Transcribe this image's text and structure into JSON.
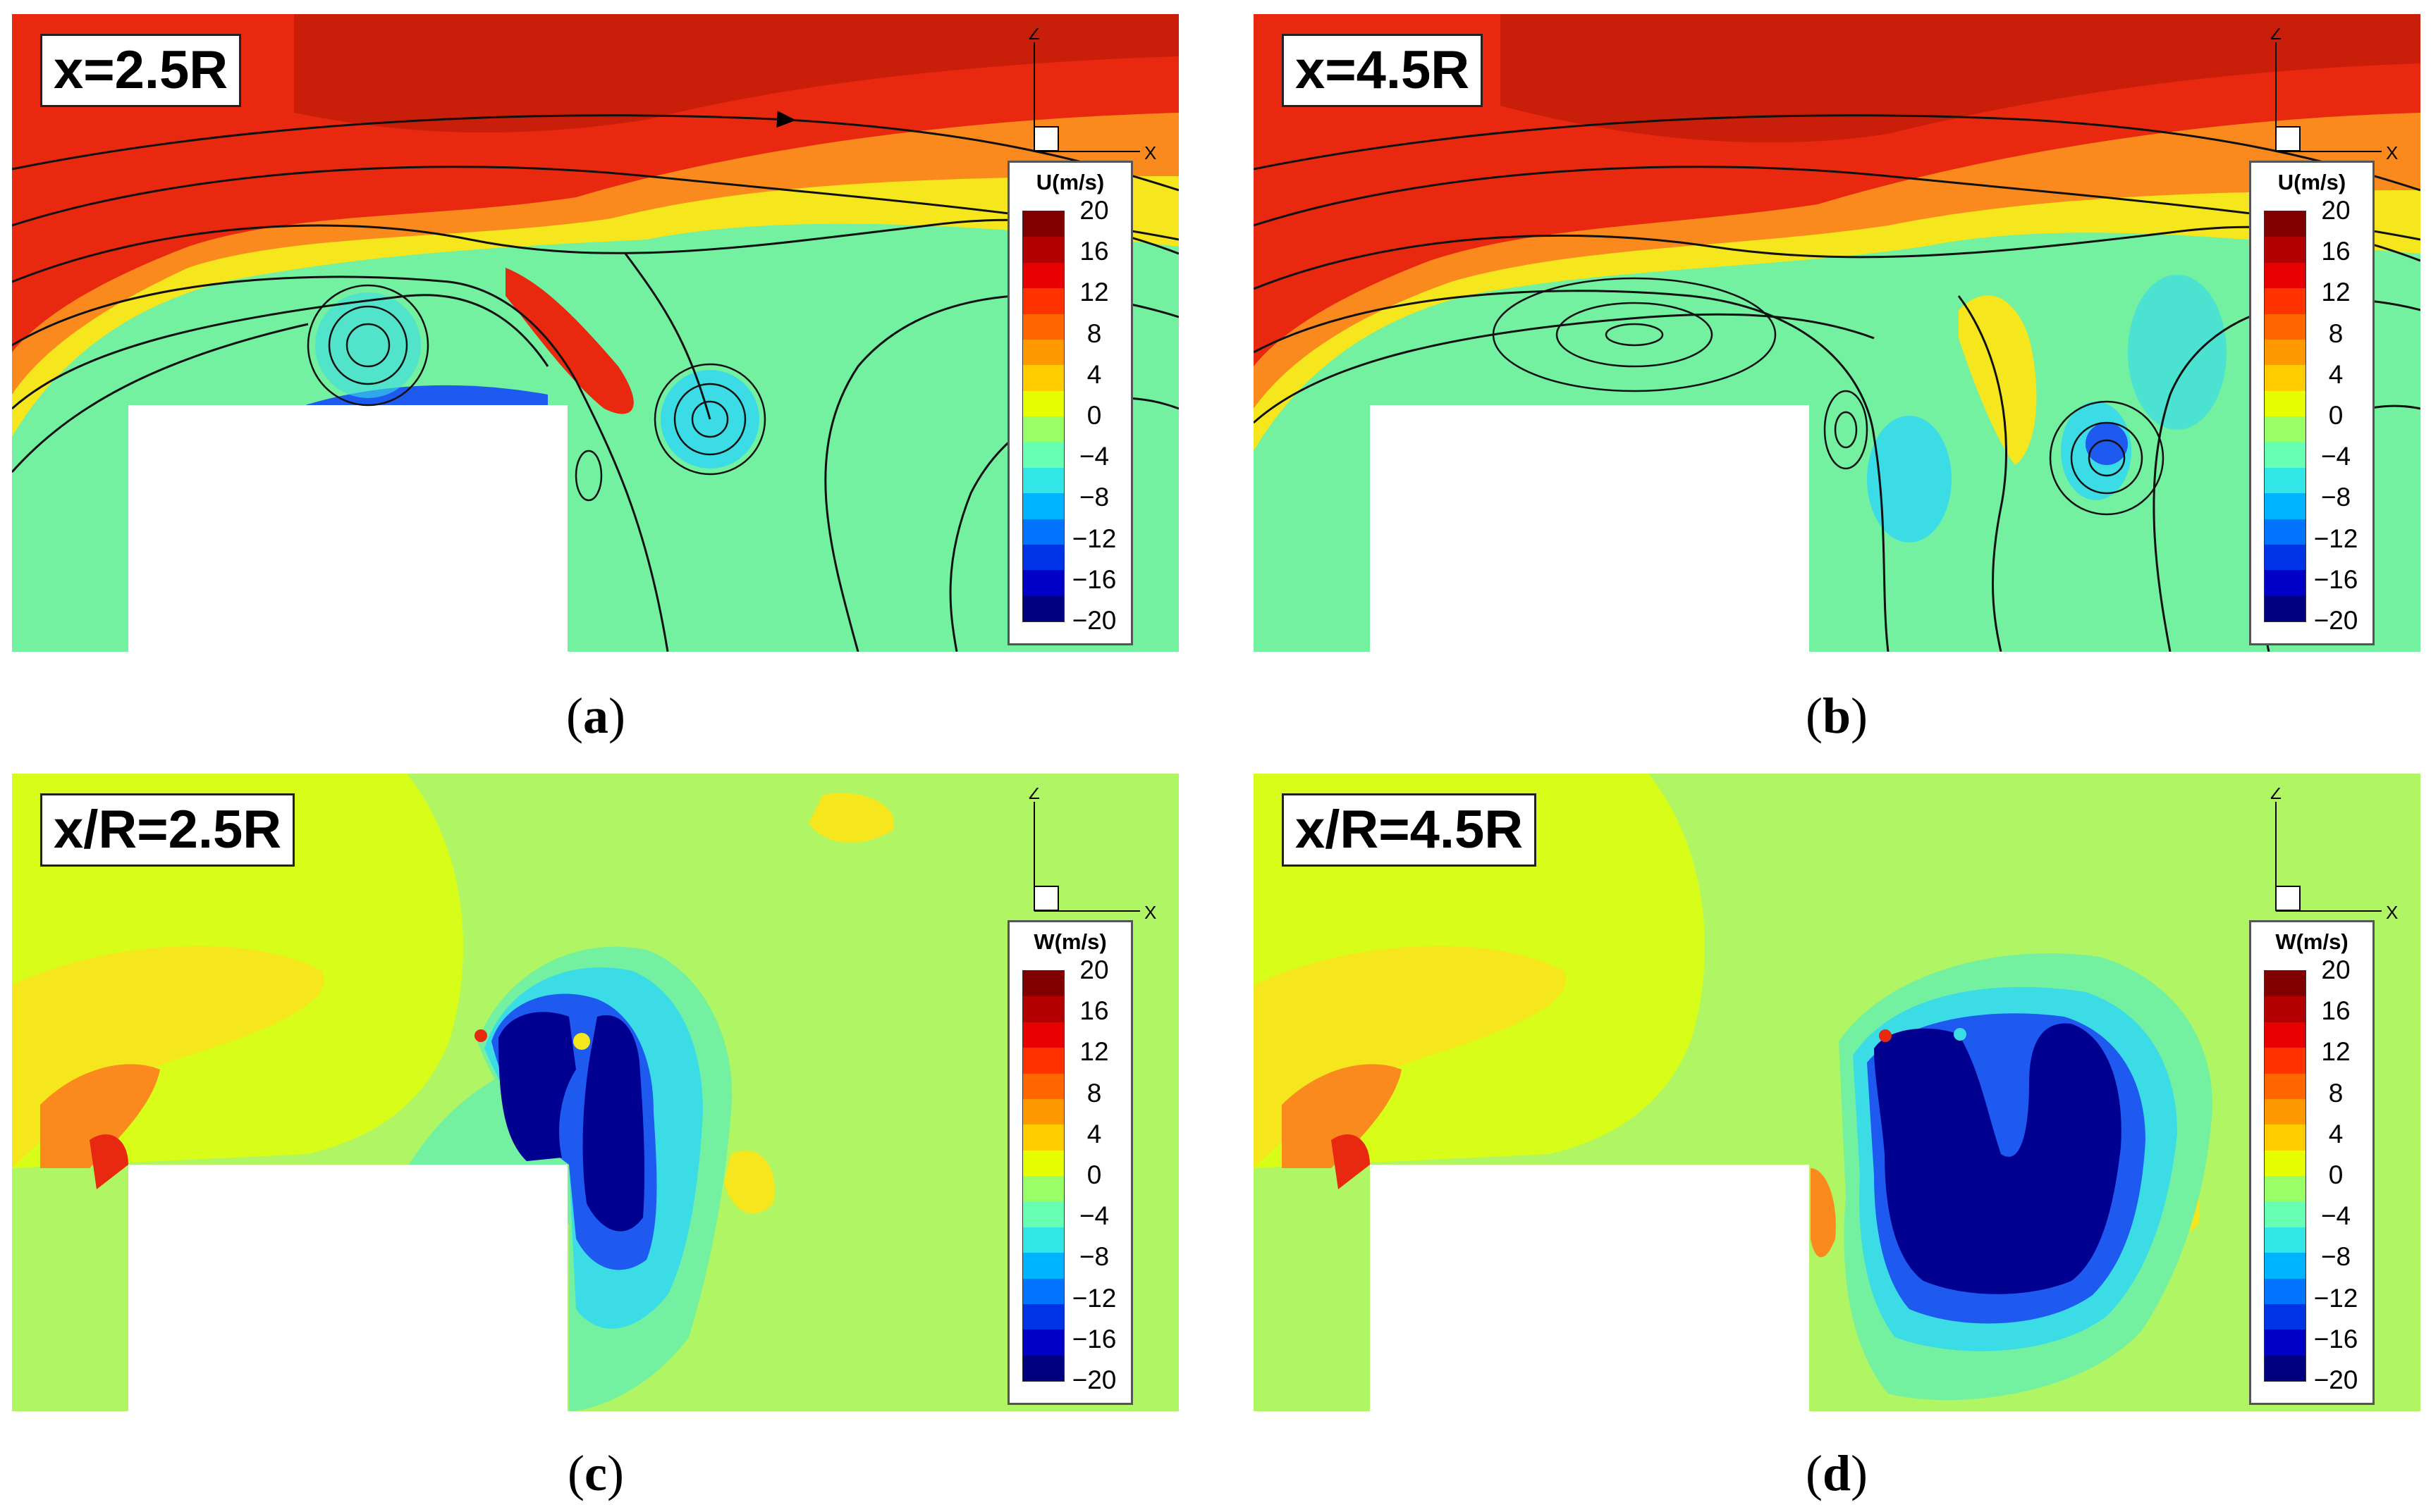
{
  "colorbar_colors": [
    "#800000",
    "#b30000",
    "#e60000",
    "#ff3300",
    "#ff6600",
    "#ff9900",
    "#ffcc00",
    "#e6ff00",
    "#99ff66",
    "#66ffb3",
    "#33e6e6",
    "#00b3ff",
    "#0073ff",
    "#0033e6",
    "#0000c8",
    "#000080"
  ],
  "field_colors": {
    "red": "#e8280f",
    "orange": "#fa8a1e",
    "yellow": "#f5e61e",
    "lime": "#aff564",
    "green": "#73f0a0",
    "cyan": "#3cdce6",
    "blue": "#1e5af0",
    "navy": "#000090",
    "darkred": "#c81e0a"
  },
  "panels": [
    {
      "label": "x=2.5R",
      "caption": "a",
      "colorbar": {
        "title": "U(m/s)",
        "ticks": [
          "20",
          "16",
          "12",
          "8",
          "4",
          "0",
          "−4",
          "−8",
          "−12",
          "−16",
          "−20"
        ]
      },
      "axes": {
        "z": "Z",
        "x": "X"
      }
    },
    {
      "label": "x=4.5R",
      "caption": "b",
      "colorbar": {
        "title": "U(m/s)",
        "ticks": [
          "20",
          "16",
          "12",
          "8",
          "4",
          "0",
          "−4",
          "−8",
          "−12",
          "−16",
          "−20"
        ]
      },
      "axes": {
        "z": "Z",
        "x": "X"
      }
    },
    {
      "label": "x/R=2.5R",
      "caption": "c",
      "colorbar": {
        "title": "W(m/s)",
        "ticks": [
          "20",
          "16",
          "12",
          "8",
          "4",
          "0",
          "−4",
          "−8",
          "−12",
          "−16",
          "−20"
        ]
      },
      "axes": {
        "z": "Z",
        "x": "X"
      }
    },
    {
      "label": "x/R=4.5R",
      "caption": "d",
      "colorbar": {
        "title": "W(m/s)",
        "ticks": [
          "20",
          "16",
          "12",
          "8",
          "4",
          "0",
          "−4",
          "−8",
          "−12",
          "−16",
          "−20"
        ]
      },
      "axes": {
        "z": "Z",
        "x": "X"
      }
    }
  ]
}
